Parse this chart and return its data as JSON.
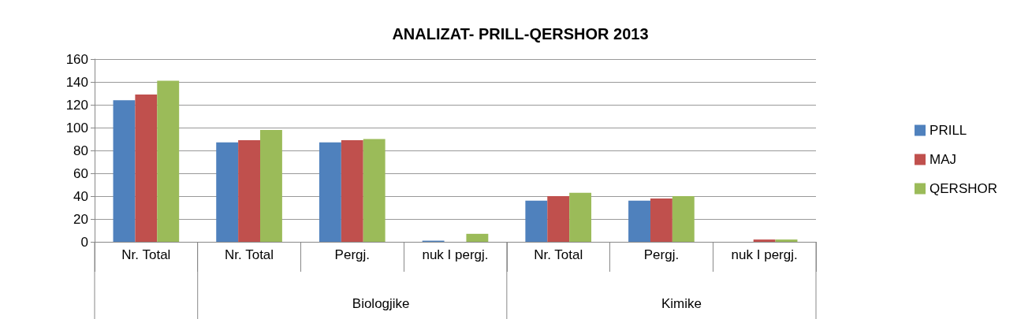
{
  "chart_data": {
    "type": "bar",
    "title": "ANALIZAT- PRILL-QERSHOR 2013",
    "categories": [
      "Nr. Total",
      "Nr. Total",
      "Pergj.",
      "nuk I pergj.",
      "Nr. Total",
      "Pergj.",
      "nuk I pergj."
    ],
    "annotations": [
      "Biologjike",
      "Kimike"
    ],
    "series": [
      {
        "name": "PRILL",
        "color": "#4f81bd",
        "values": [
          124,
          87,
          87,
          1,
          36,
          36,
          0
        ]
      },
      {
        "name": "MAJ",
        "color": "#c0504d",
        "values": [
          129,
          89,
          89,
          0,
          40,
          38,
          2
        ]
      },
      {
        "name": "QERSHOR",
        "color": "#9bbb59",
        "values": [
          141,
          98,
          90,
          7,
          43,
          40,
          2
        ]
      }
    ],
    "ylim": [
      0,
      160
    ],
    "yticks": [
      0,
      20,
      40,
      60,
      80,
      100,
      120,
      140,
      160
    ],
    "grid": "y",
    "legend": "right"
  }
}
